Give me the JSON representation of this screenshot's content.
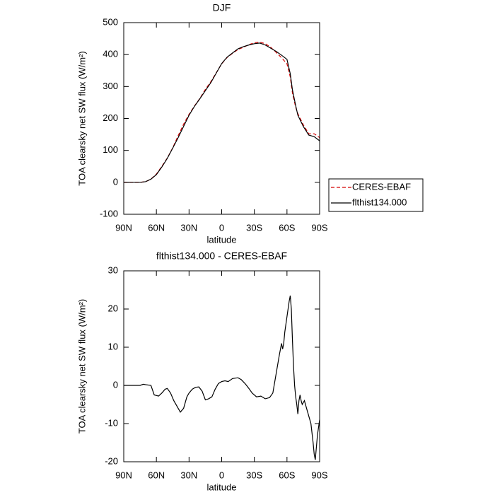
{
  "chart_data": [
    {
      "type": "line",
      "title": "DJF",
      "xlabel": "latitude",
      "ylabel": "TOA clearsky net SW flux (W/m²)",
      "xlim": [
        90,
        -90
      ],
      "ylim": [
        -100,
        500
      ],
      "xticks": [
        {
          "value": 90,
          "label": "90N"
        },
        {
          "value": 60,
          "label": "60N"
        },
        {
          "value": 30,
          "label": "30N"
        },
        0,
        {
          "value": -30,
          "label": "30S"
        },
        {
          "value": -60,
          "label": "60S"
        },
        {
          "value": -90,
          "label": "90S"
        }
      ],
      "yticks": [
        -100,
        0,
        100,
        200,
        300,
        400,
        500
      ],
      "legend": "outside right",
      "x": [
        90,
        85,
        80,
        75,
        70,
        65,
        60,
        55,
        50,
        45,
        40,
        35,
        30,
        25,
        20,
        15,
        10,
        5,
        0,
        -5,
        -10,
        -15,
        -20,
        -25,
        -30,
        -35,
        -40,
        -45,
        -50,
        -55,
        -60,
        -63,
        -65,
        -68,
        -70,
        -75,
        -80,
        -85,
        -90
      ],
      "series": [
        {
          "name": "CERES-EBAF",
          "color": "#d40000",
          "dash": true,
          "values": [
            0,
            0,
            0,
            0,
            2,
            10,
            26,
            50,
            76,
            108,
            146,
            182,
            213,
            239,
            263,
            291,
            315,
            343,
            371,
            391,
            404,
            416,
            423,
            431,
            437,
            439,
            434,
            423,
            407,
            390,
            371,
            330,
            280,
            235,
            215,
            180,
            152,
            152,
            140
          ]
        },
        {
          "name": "flthist134.000",
          "color": "#000000",
          "dash": false,
          "values": [
            0,
            0,
            0,
            0,
            2,
            10,
            24,
            48,
            75,
            107,
            140,
            175,
            210,
            238,
            262,
            287,
            312,
            342,
            372,
            392,
            405,
            418,
            425,
            430,
            434,
            436,
            430,
            420,
            410,
            398,
            385,
            340,
            290,
            240,
            210,
            175,
            148,
            143,
            130
          ]
        }
      ]
    },
    {
      "type": "line",
      "title": "flthist134.000 - CERES-EBAF",
      "xlabel": "latitude",
      "ylabel": "TOA clearsky net SW flux (W/m²)",
      "xlim": [
        90,
        -90
      ],
      "ylim": [
        -20,
        30
      ],
      "xticks": [
        {
          "value": 90,
          "label": "90N"
        },
        {
          "value": 60,
          "label": "60N"
        },
        {
          "value": 30,
          "label": "30N"
        },
        0,
        {
          "value": -30,
          "label": "30S"
        },
        {
          "value": -60,
          "label": "60S"
        },
        {
          "value": -90,
          "label": "90S"
        }
      ],
      "yticks": [
        -20,
        -10,
        0,
        10,
        20,
        30
      ],
      "x": [
        90,
        80,
        75,
        72,
        70,
        65,
        62,
        58,
        55,
        52,
        50,
        47,
        44,
        41,
        38,
        35,
        32,
        30,
        27,
        24,
        21,
        18,
        15,
        12,
        9,
        6,
        3,
        0,
        -3,
        -6,
        -10,
        -15,
        -18,
        -22,
        -25,
        -28,
        -32,
        -36,
        -40,
        -44,
        -47,
        -50,
        -53,
        -55,
        -56,
        -57,
        -58,
        -60,
        -62,
        -63,
        -64,
        -65,
        -66,
        -67,
        -68,
        -69,
        -70,
        -71,
        -72,
        -73,
        -74,
        -76,
        -78,
        -80,
        -82,
        -84,
        -85,
        -86,
        -88,
        -90
      ],
      "series": [
        {
          "color": "#000000",
          "dash": false,
          "values": [
            0,
            0,
            0,
            0.3,
            0.2,
            0,
            -2.5,
            -2.8,
            -2,
            -1,
            -0.8,
            -2,
            -4,
            -5.5,
            -7,
            -6,
            -3,
            -2,
            -1,
            -0.5,
            -0.4,
            -1.5,
            -3.8,
            -3.5,
            -3,
            -1,
            0.5,
            1,
            1.2,
            1,
            1.8,
            2,
            1.5,
            0.3,
            -0.8,
            -2,
            -3,
            -2.8,
            -3.5,
            -3.2,
            -2,
            3,
            8,
            11,
            9.5,
            11,
            14,
            18,
            22,
            23.5,
            20,
            12,
            5,
            0,
            -3,
            -5,
            -7.5,
            -4,
            -2.5,
            -4,
            -5,
            -4,
            -6,
            -8,
            -10,
            -15,
            -18,
            -19.5,
            -13,
            -9
          ]
        }
      ]
    }
  ]
}
